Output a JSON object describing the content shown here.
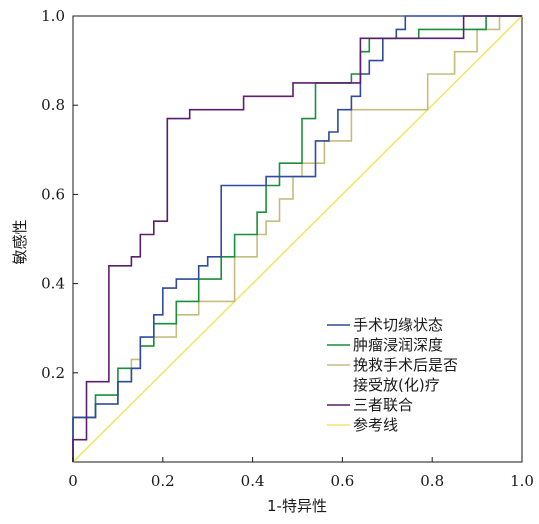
{
  "chart_data": {
    "type": "line",
    "xlabel": "1-特异性",
    "ylabel": "敏感性",
    "xlim": [
      0,
      1
    ],
    "ylim": [
      0,
      1
    ],
    "x_ticks": [
      0,
      0.2,
      0.4,
      0.6,
      0.8,
      1.0
    ],
    "x_tick_labels": [
      "0",
      "0.2",
      "0.4",
      "0.6",
      "0.8",
      "1.0"
    ],
    "y_ticks": [
      0.2,
      0.4,
      0.6,
      0.8,
      1.0
    ],
    "y_tick_labels": [
      "0.2",
      "0.4",
      "0.6",
      "0.8",
      "1.0"
    ],
    "grid": false,
    "legend_position": "bottom-right",
    "series": [
      {
        "name": "手术切缘状态",
        "color": "#2f4a9e",
        "points": [
          [
            0,
            0
          ],
          [
            0,
            0.1
          ],
          [
            0.05,
            0.1
          ],
          [
            0.05,
            0.13
          ],
          [
            0.1,
            0.13
          ],
          [
            0.1,
            0.18
          ],
          [
            0.13,
            0.18
          ],
          [
            0.13,
            0.21
          ],
          [
            0.15,
            0.21
          ],
          [
            0.15,
            0.28
          ],
          [
            0.18,
            0.28
          ],
          [
            0.18,
            0.33
          ],
          [
            0.2,
            0.33
          ],
          [
            0.2,
            0.39
          ],
          [
            0.23,
            0.39
          ],
          [
            0.23,
            0.41
          ],
          [
            0.28,
            0.41
          ],
          [
            0.28,
            0.44
          ],
          [
            0.3,
            0.44
          ],
          [
            0.3,
            0.46
          ],
          [
            0.33,
            0.46
          ],
          [
            0.33,
            0.62
          ],
          [
            0.43,
            0.62
          ],
          [
            0.43,
            0.64
          ],
          [
            0.54,
            0.64
          ],
          [
            0.54,
            0.72
          ],
          [
            0.57,
            0.72
          ],
          [
            0.57,
            0.74
          ],
          [
            0.59,
            0.74
          ],
          [
            0.59,
            0.79
          ],
          [
            0.62,
            0.79
          ],
          [
            0.62,
            0.82
          ],
          [
            0.64,
            0.82
          ],
          [
            0.64,
            0.87
          ],
          [
            0.66,
            0.87
          ],
          [
            0.66,
            0.9
          ],
          [
            0.69,
            0.9
          ],
          [
            0.69,
            0.95
          ],
          [
            0.72,
            0.95
          ],
          [
            0.72,
            0.97
          ],
          [
            0.74,
            0.97
          ],
          [
            0.74,
            1.0
          ],
          [
            1.0,
            1.0
          ]
        ]
      },
      {
        "name": "肿瘤浸润深度",
        "color": "#1a8f3a",
        "points": [
          [
            0,
            0
          ],
          [
            0,
            0.1
          ],
          [
            0.05,
            0.1
          ],
          [
            0.05,
            0.15
          ],
          [
            0.1,
            0.15
          ],
          [
            0.1,
            0.21
          ],
          [
            0.15,
            0.21
          ],
          [
            0.15,
            0.26
          ],
          [
            0.18,
            0.26
          ],
          [
            0.18,
            0.31
          ],
          [
            0.23,
            0.31
          ],
          [
            0.23,
            0.36
          ],
          [
            0.28,
            0.36
          ],
          [
            0.28,
            0.41
          ],
          [
            0.33,
            0.41
          ],
          [
            0.33,
            0.46
          ],
          [
            0.36,
            0.46
          ],
          [
            0.36,
            0.51
          ],
          [
            0.41,
            0.51
          ],
          [
            0.41,
            0.56
          ],
          [
            0.43,
            0.56
          ],
          [
            0.43,
            0.62
          ],
          [
            0.46,
            0.62
          ],
          [
            0.46,
            0.67
          ],
          [
            0.51,
            0.67
          ],
          [
            0.51,
            0.77
          ],
          [
            0.54,
            0.77
          ],
          [
            0.54,
            0.85
          ],
          [
            0.62,
            0.85
          ],
          [
            0.62,
            0.87
          ],
          [
            0.64,
            0.87
          ],
          [
            0.64,
            0.92
          ],
          [
            0.66,
            0.92
          ],
          [
            0.66,
            0.95
          ],
          [
            0.77,
            0.95
          ],
          [
            0.77,
            0.97
          ],
          [
            0.92,
            0.97
          ],
          [
            0.92,
            1.0
          ],
          [
            1.0,
            1.0
          ]
        ]
      },
      {
        "name": "挽救手术后是否\n接受放(化)疗",
        "color": "#c4bd7e",
        "points": [
          [
            0,
            0
          ],
          [
            0,
            0.1
          ],
          [
            0.05,
            0.1
          ],
          [
            0.05,
            0.13
          ],
          [
            0.1,
            0.13
          ],
          [
            0.1,
            0.18
          ],
          [
            0.13,
            0.18
          ],
          [
            0.13,
            0.23
          ],
          [
            0.15,
            0.23
          ],
          [
            0.15,
            0.26
          ],
          [
            0.18,
            0.26
          ],
          [
            0.18,
            0.28
          ],
          [
            0.23,
            0.28
          ],
          [
            0.23,
            0.33
          ],
          [
            0.28,
            0.33
          ],
          [
            0.28,
            0.36
          ],
          [
            0.36,
            0.36
          ],
          [
            0.36,
            0.46
          ],
          [
            0.41,
            0.46
          ],
          [
            0.41,
            0.51
          ],
          [
            0.43,
            0.51
          ],
          [
            0.43,
            0.54
          ],
          [
            0.46,
            0.54
          ],
          [
            0.46,
            0.59
          ],
          [
            0.49,
            0.59
          ],
          [
            0.49,
            0.64
          ],
          [
            0.51,
            0.64
          ],
          [
            0.51,
            0.67
          ],
          [
            0.56,
            0.67
          ],
          [
            0.56,
            0.72
          ],
          [
            0.62,
            0.72
          ],
          [
            0.62,
            0.79
          ],
          [
            0.79,
            0.79
          ],
          [
            0.79,
            0.87
          ],
          [
            0.85,
            0.87
          ],
          [
            0.85,
            0.92
          ],
          [
            0.9,
            0.92
          ],
          [
            0.9,
            0.97
          ],
          [
            0.95,
            0.97
          ],
          [
            0.95,
            1.0
          ],
          [
            1.0,
            1.0
          ]
        ]
      },
      {
        "name": "三者联合",
        "color": "#5b1e6e",
        "points": [
          [
            0,
            0
          ],
          [
            0,
            0.05
          ],
          [
            0.03,
            0.05
          ],
          [
            0.03,
            0.18
          ],
          [
            0.08,
            0.18
          ],
          [
            0.08,
            0.44
          ],
          [
            0.13,
            0.44
          ],
          [
            0.13,
            0.46
          ],
          [
            0.15,
            0.46
          ],
          [
            0.15,
            0.51
          ],
          [
            0.18,
            0.51
          ],
          [
            0.18,
            0.54
          ],
          [
            0.21,
            0.54
          ],
          [
            0.21,
            0.77
          ],
          [
            0.26,
            0.77
          ],
          [
            0.26,
            0.79
          ],
          [
            0.38,
            0.79
          ],
          [
            0.38,
            0.82
          ],
          [
            0.49,
            0.82
          ],
          [
            0.49,
            0.85
          ],
          [
            0.64,
            0.85
          ],
          [
            0.64,
            0.95
          ],
          [
            0.87,
            0.95
          ],
          [
            0.87,
            1.0
          ],
          [
            1.0,
            1.0
          ]
        ]
      },
      {
        "name": "参考线",
        "color": "#f2e66b",
        "points": [
          [
            0,
            0
          ],
          [
            1,
            1
          ]
        ]
      }
    ]
  }
}
